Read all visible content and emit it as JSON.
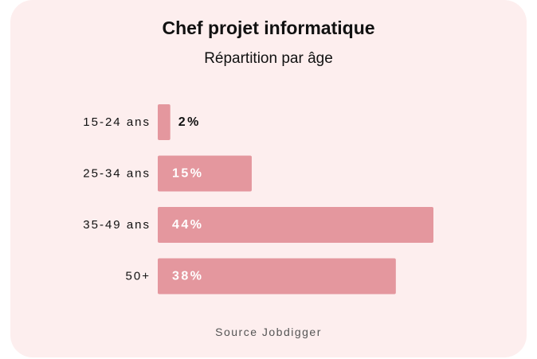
{
  "title": "Chef projet informatique",
  "subtitle": "Répartition par âge",
  "source": "Source Jobdigger",
  "colors": {
    "card_background": "#fdeeee",
    "bar": "#e4979e",
    "label_inside": "#ffffff",
    "label_outside": "#111111"
  },
  "chart_data": {
    "type": "bar",
    "orientation": "horizontal",
    "title": "Chef projet informatique",
    "subtitle": "Répartition par âge",
    "categories": [
      "15-24 ans",
      "25-34 ans",
      "35-49 ans",
      "50+"
    ],
    "values": [
      2,
      15,
      44,
      38
    ],
    "value_labels": [
      "2%",
      "15%",
      "44%",
      "38%"
    ],
    "unit": "%",
    "xlim": [
      0,
      44
    ],
    "grid": false,
    "legend": "none"
  }
}
